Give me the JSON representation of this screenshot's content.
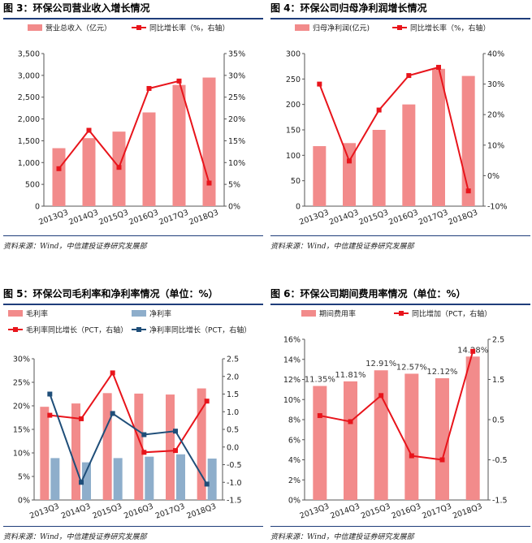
{
  "colors": {
    "bar_pink": "#f28b8b",
    "line_red": "#e8141b",
    "bar_blue": "#8eaecb",
    "line_navy": "#1f4e79",
    "rule": "#1f3d7a"
  },
  "chart_data": [
    {
      "id": "fig3",
      "figure_title": "图 3：环保公司营业收入增长情况",
      "source": "资料来源：Wind，中信建投证券研究发展部",
      "type": "bar+line",
      "categories": [
        "2013Q3",
        "2014Q3",
        "2015Q3",
        "2016Q3",
        "2017Q3",
        "2018Q3"
      ],
      "bar_series": [
        {
          "name": "营业总收入（亿元）",
          "values": [
            1330,
            1560,
            1710,
            2150,
            2780,
            2950
          ],
          "axis": "left",
          "color": "#f28b8b"
        }
      ],
      "line_series": [
        {
          "name": "同比增长率（%，右轴）",
          "values": [
            8.6,
            17.4,
            8.9,
            27.0,
            28.7,
            5.3
          ],
          "axis": "right",
          "color": "#e8141b"
        }
      ],
      "left_axis": {
        "min": 0,
        "max": 3500,
        "ticks": [
          "0",
          "500",
          "1,000",
          "1,500",
          "2,000",
          "2,500",
          "3,000",
          "3,500"
        ]
      },
      "right_axis": {
        "min": 0,
        "max": 35,
        "ticks": [
          "0%",
          "5%",
          "10%",
          "15%",
          "20%",
          "25%",
          "30%",
          "35%"
        ]
      }
    },
    {
      "id": "fig4",
      "figure_title": "图 4：环保公司归母净利润增长情况",
      "source": "资料来源：Wind，中信建投证券研究发展部",
      "type": "bar+line",
      "categories": [
        "2013Q3",
        "2014Q3",
        "2015Q3",
        "2016Q3",
        "2017Q3",
        "2018Q3"
      ],
      "bar_series": [
        {
          "name": "归母净利润(亿元)",
          "values": [
            118,
            124,
            150,
            200,
            270,
            256
          ],
          "axis": "left",
          "color": "#f28b8b"
        }
      ],
      "line_series": [
        {
          "name": "同比增长率（%，右轴）",
          "values": [
            30,
            4.8,
            21.5,
            32.8,
            35.5,
            -5
          ],
          "axis": "right",
          "color": "#e8141b"
        }
      ],
      "left_axis": {
        "min": 0,
        "max": 300,
        "ticks": [
          "0",
          "50",
          "100",
          "150",
          "200",
          "250",
          "300"
        ]
      },
      "right_axis": {
        "min": -10,
        "max": 40,
        "ticks": [
          "-10%",
          "0%",
          "10%",
          "20%",
          "30%",
          "40%"
        ]
      }
    },
    {
      "id": "fig5",
      "figure_title": "图 5：环保公司毛利率和净利率情况（单位：%）",
      "source": "资料来源：Wind，中信建投证券研究发展部",
      "type": "bar+line",
      "categories": [
        "2013Q3",
        "2014Q3",
        "2015Q3",
        "2016Q3",
        "2017Q3",
        "2018Q3"
      ],
      "bar_series": [
        {
          "name": "毛利率",
          "values": [
            19.8,
            20.5,
            22.7,
            22.6,
            22.4,
            23.7
          ],
          "axis": "left",
          "color": "#f28b8b"
        },
        {
          "name": "净利率",
          "values": [
            8.9,
            8.0,
            8.9,
            9.2,
            9.7,
            8.8
          ],
          "axis": "left",
          "color": "#8eaecb"
        }
      ],
      "line_series": [
        {
          "name": "毛利率同比增长（PCT，右轴）",
          "values": [
            0.9,
            0.8,
            2.1,
            -0.15,
            -0.1,
            1.3
          ],
          "axis": "right",
          "color": "#e8141b"
        },
        {
          "name": "净利率同比增长（PCT，右轴）",
          "values": [
            1.5,
            -1.0,
            0.95,
            0.35,
            0.45,
            -1.05
          ],
          "axis": "right",
          "color": "#1f4e79"
        }
      ],
      "left_axis": {
        "min": 0,
        "max": 30,
        "ticks": [
          "0%",
          "5%",
          "10%",
          "15%",
          "20%",
          "25%",
          "30%"
        ]
      },
      "right_axis": {
        "min": -1.5,
        "max": 2.5,
        "ticks": [
          "-1.5",
          "-1.0",
          "-0.5",
          "0.0",
          "0.5",
          "1.0",
          "1.5",
          "2.0",
          "2.5"
        ]
      }
    },
    {
      "id": "fig6",
      "figure_title": "图 6：环保公司期间费用率情况（单位：%）",
      "source": "资料来源：Wind，中信建投证券研究发展部",
      "type": "bar+line",
      "categories": [
        "2013Q3",
        "2014Q3",
        "2015Q3",
        "2016Q3",
        "2017Q3",
        "2018Q3"
      ],
      "bar_series": [
        {
          "name": "期间费用率",
          "values": [
            11.35,
            11.81,
            12.91,
            12.57,
            12.12,
            14.28
          ],
          "axis": "left",
          "color": "#f28b8b"
        }
      ],
      "data_labels": [
        "11.35%",
        "11.81%",
        "12.91%",
        "12.57%",
        "12.12%",
        "14.28%"
      ],
      "line_series": [
        {
          "name": "同比增加（PCT，右轴）",
          "values": [
            0.6,
            0.45,
            1.1,
            -0.4,
            -0.5,
            2.2
          ],
          "axis": "right",
          "color": "#e8141b"
        }
      ],
      "left_axis": {
        "min": 0,
        "max": 16,
        "ticks": [
          "0%",
          "2%",
          "4%",
          "6%",
          "8%",
          "10%",
          "12%",
          "14%",
          "16%"
        ]
      },
      "right_axis": {
        "min": -1.5,
        "max": 2.5,
        "ticks": [
          "-1.5",
          "-0.5",
          "0.5",
          "1.5",
          "2.5"
        ]
      }
    }
  ]
}
